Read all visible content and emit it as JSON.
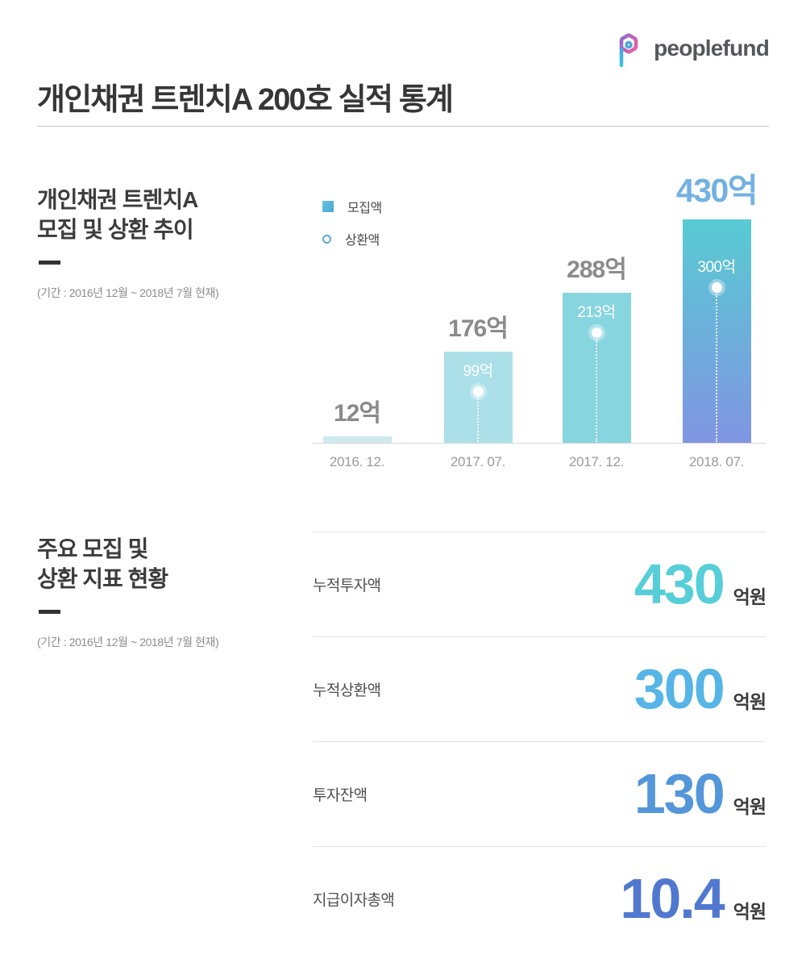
{
  "header": {
    "brand": "peoplefund",
    "title": "개인채권 트렌치A 200호 실적 통계"
  },
  "sections": {
    "chart": {
      "title_line1": "개인채권 트렌치A",
      "title_line2": "모집 및 상환 추이",
      "period": "(기간 : 2016년 12월 ~ 2018년 7월 현재)"
    },
    "metrics": {
      "title_line1": "주요 모집 및",
      "title_line2": "상환 지표 현황",
      "period": "(기간 : 2016년 12월 ~ 2018년 7월 현재)"
    }
  },
  "chart_data": {
    "type": "bar",
    "title": "개인채권 트렌치A 모집 및 상환 추이",
    "categories": [
      "2016. 12.",
      "2017. 07.",
      "2017. 12.",
      "2018. 07."
    ],
    "series": [
      {
        "name": "모집액",
        "values": [
          12,
          176,
          288,
          430
        ],
        "labels": [
          "12억",
          "176억",
          "288억",
          "430억"
        ]
      },
      {
        "name": "상환액",
        "values": [
          null,
          99,
          213,
          300
        ],
        "labels": [
          null,
          "99억",
          "213억",
          "300억"
        ]
      }
    ],
    "ylim": [
      0,
      430
    ],
    "unit": "억",
    "grid": false,
    "legend_position": "top-left",
    "bar_colors": [
      "#cdebee",
      "#abe0e8",
      "#87d5df",
      "linear-gradient(180deg,#58cbd3 0%,#8095e2 100%)"
    ],
    "bar_label_color": "#8b8b8b",
    "highlight_bar_label_color": "#73b1e2",
    "marker_label_color": "#ffffff"
  },
  "metrics": {
    "rows": [
      {
        "label": "누적투자액",
        "value": "430",
        "unit": "억원",
        "color": "#57ced8"
      },
      {
        "label": "누적상환액",
        "value": "300",
        "unit": "억원",
        "color": "#56b5e6"
      },
      {
        "label": "투자잔액",
        "value": "130",
        "unit": "억원",
        "color": "#5397da"
      },
      {
        "label": "지급이자총액",
        "value": "10.4",
        "unit": "억원",
        "color": "#5178cf"
      }
    ]
  }
}
